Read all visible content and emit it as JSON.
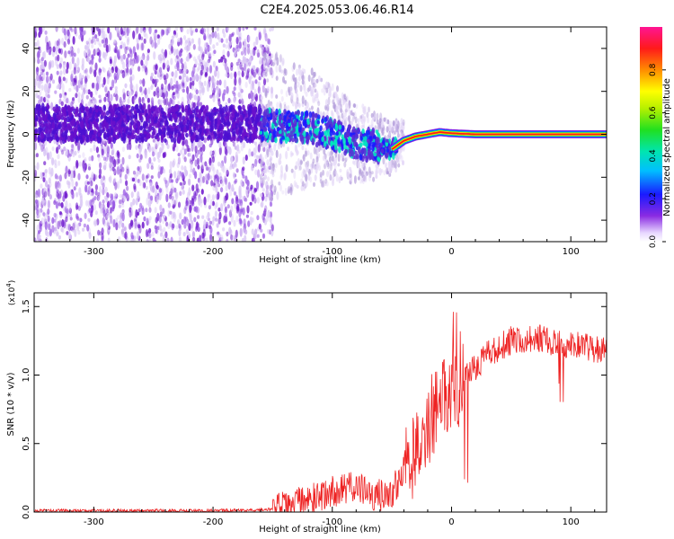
{
  "title": "C2E4.2025.053.06.46.R14",
  "chart_data": [
    {
      "type": "heatmap",
      "xlabel": "Height of straight line (km)",
      "ylabel": "Frequency (Hz)",
      "xlim": [
        -350,
        130
      ],
      "ylim": [
        -50,
        50
      ],
      "xticks": [
        -300,
        -200,
        -100,
        0,
        100
      ],
      "xtick_labels": [
        "-300",
        "-200",
        "-100",
        "0",
        "100"
      ],
      "yticks": [
        -40,
        -20,
        0,
        20,
        40
      ],
      "ytick_labels": [
        "-40",
        "-20",
        "0",
        "20",
        "40"
      ],
      "colorbar": {
        "label": "Normalized spectral amplitude",
        "range": [
          0,
          1
        ],
        "ticks": [
          0.0,
          0.2,
          0.4,
          0.6,
          0.8
        ],
        "tick_labels": [
          "0.0",
          "0.2",
          "0.4",
          "0.6",
          "0.8"
        ]
      },
      "signal_trace": {
        "x": [
          -180,
          -150,
          -120,
          -100,
          -80,
          -60,
          -50,
          -40,
          -30,
          -20,
          -10,
          0,
          20,
          50,
          80,
          100,
          130
        ],
        "y": [
          5,
          4,
          3,
          0,
          -4,
          -6,
          -7,
          -3,
          -1,
          0,
          1,
          0.5,
          0,
          0,
          0,
          0,
          0
        ]
      }
    },
    {
      "type": "line",
      "xlabel": "Height of straight line (km)",
      "ylabel": "SNR (10 * v/v)",
      "y_multiplier": "(x10",
      "y_multiplier_exp": "4",
      "y_multiplier_close": ")",
      "xlim": [
        -350,
        130
      ],
      "ylim": [
        0,
        1.6
      ],
      "xticks": [
        -300,
        -200,
        -100,
        0,
        100
      ],
      "xtick_labels": [
        "-300",
        "-200",
        "-100",
        "0",
        "100"
      ],
      "yticks": [
        0.0,
        0.5,
        1.0,
        1.5
      ],
      "ytick_labels": [
        "0.0",
        "0.5",
        "1.0",
        "1.5"
      ],
      "series": [
        {
          "color": "#ee2222",
          "x": [
            -350,
            -300,
            -250,
            -200,
            -150,
            -120,
            -100,
            -80,
            -70,
            -60,
            -50,
            -40,
            -30,
            -20,
            -10,
            0,
            10,
            20,
            30,
            40,
            50,
            60,
            70,
            80,
            90,
            100,
            110,
            120,
            130
          ],
          "y": [
            0.01,
            0.01,
            0.01,
            0.01,
            0.02,
            0.08,
            0.15,
            0.18,
            0.14,
            0.12,
            0.15,
            0.3,
            0.45,
            0.65,
            0.8,
            0.9,
            0.95,
            1.05,
            1.15,
            1.2,
            1.25,
            1.25,
            1.27,
            1.25,
            1.25,
            1.22,
            1.2,
            1.2,
            1.18
          ]
        }
      ]
    }
  ]
}
